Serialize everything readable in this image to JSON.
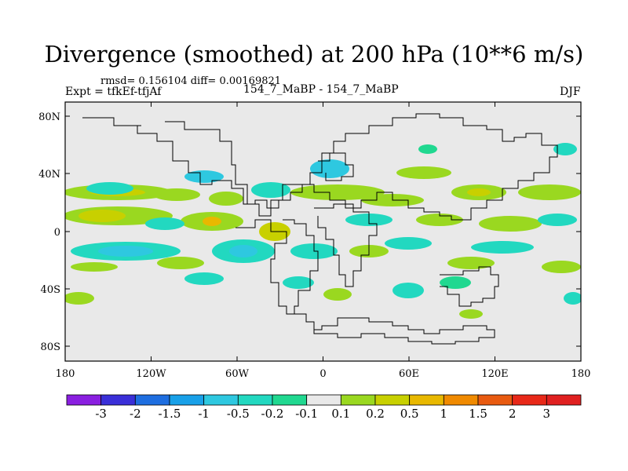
{
  "header": {
    "title": "Divergence (smoothed) at 200 hPa (10**6 m/s)",
    "stats": "rmsd= 0.156104 diff= 0.00169821",
    "expt": "Expt = tfkEf-tfjAf",
    "subtitle": "154_7_MaBP - 154_7_MaBP",
    "season": "DJF"
  },
  "map": {
    "projection": "cylindrical equidistant",
    "background_color": "#e9e9e9",
    "coastline_color": "#000000",
    "lon_ticks": [
      "180",
      "120W",
      "60W",
      "0",
      "60E",
      "120E",
      "180"
    ],
    "lat_ticks": [
      "80N",
      "40N",
      "0",
      "40S",
      "80S"
    ]
  },
  "colorbar": {
    "labels": [
      "-3",
      "-2",
      "-1.5",
      "-1",
      "-0.5",
      "-0.2",
      "-0.1",
      "0.1",
      "0.2",
      "0.5",
      "1",
      "1.5",
      "2",
      "3"
    ],
    "colors": [
      "#8a1fe0",
      "#3a2fd8",
      "#1e6ee0",
      "#18a0e8",
      "#2ec8e0",
      "#22d8c0",
      "#20d890",
      "#e9e9e9",
      "#9ad820",
      "#c8d000",
      "#e8b800",
      "#f08a00",
      "#e85a10",
      "#e82818",
      "#e02020"
    ]
  },
  "chart_data": {
    "type": "heatmap",
    "title": "Divergence (smoothed) at 200 hPa (10**6 m/s)",
    "x_range": [
      -180,
      180
    ],
    "y_range": [
      -90,
      90
    ],
    "levels": [
      -3,
      -2,
      -1.5,
      -1,
      -0.5,
      -0.2,
      -0.1,
      0.1,
      0.2,
      0.5,
      1,
      1.5,
      2,
      3
    ]
  }
}
